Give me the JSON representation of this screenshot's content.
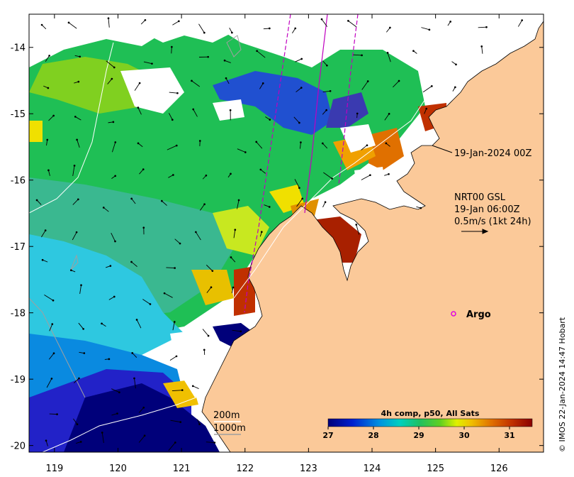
{
  "map": {
    "lon_ticks": [
      "119",
      "120",
      "121",
      "122",
      "123",
      "124",
      "125",
      "126"
    ],
    "lat_ticks": [
      "-14",
      "-15",
      "-16",
      "-17",
      "-18",
      "-19",
      "-20"
    ],
    "lon_range": [
      118.6,
      126.7
    ],
    "lat_range": [
      -20.1,
      -13.5
    ]
  },
  "annotations": {
    "track_date": "19-Jan-2024 00Z",
    "current_line1": "NRT00 GSL",
    "current_line2": "19-Jan 06:00Z",
    "current_line3": "0.5m/s (1kt 24h)",
    "argo_label": "Argo",
    "isobath_200": "200m",
    "isobath_1000": "1000m",
    "credit": "© IMOS 22-Jan-2024 14:47 Hobart"
  },
  "colorbar": {
    "title": "4h comp, p50, All Sats",
    "labels": [
      "27",
      "28",
      "29",
      "30",
      "31"
    ],
    "range": [
      27,
      31.5
    ]
  },
  "colors": {
    "land": "#fbc999",
    "frame": "#000000",
    "argo_marker": "#e000e0",
    "satellite_track": "#c000c0"
  }
}
